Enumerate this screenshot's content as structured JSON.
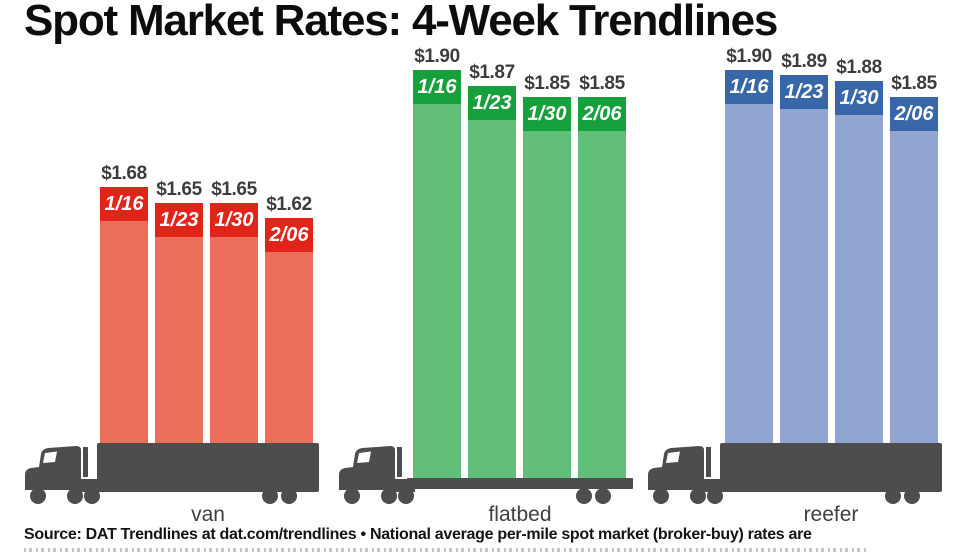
{
  "title": "Spot Market Rates: 4-Week Trendlines",
  "source_note": "Source: DAT Trendlines at dat.com/trendlines • National average per-mile spot market (broker-buy) rates are",
  "colors": {
    "background": "#ffffff",
    "title": "#0d0d0d",
    "value_label": "#3d3d3d",
    "group_label": "#3f3f3f",
    "source_text": "#141414",
    "truck": "#4d4d4d"
  },
  "chart_data": {
    "type": "bar",
    "title": "Spot Market Rates: 4-Week Trendlines",
    "xlabel": "",
    "ylabel": "",
    "unit": "$ per mile",
    "legend": "none",
    "gridlines": false,
    "categories": [
      "1/16",
      "1/23",
      "1/30",
      "2/06"
    ],
    "groups": [
      {
        "name": "van",
        "icon": "van-box-trailer-truck-icon",
        "truck_style": "box",
        "header_color": "#e2231a",
        "body_color": "#eb6e5b",
        "values": [
          1.68,
          1.65,
          1.65,
          1.62
        ],
        "value_labels": [
          "$1.68",
          "$1.65",
          "$1.65",
          "$1.62"
        ]
      },
      {
        "name": "flatbed",
        "icon": "flatbed-truck-icon",
        "truck_style": "flatbed",
        "header_color": "#16a03c",
        "body_color": "#62bf7a",
        "values": [
          1.9,
          1.87,
          1.85,
          1.85
        ],
        "value_labels": [
          "$1.90",
          "$1.87",
          "$1.85",
          "$1.85"
        ]
      },
      {
        "name": "reefer",
        "icon": "reefer-box-trailer-truck-icon",
        "truck_style": "box",
        "header_color": "#3767a9",
        "body_color": "#90a5d0",
        "values": [
          1.9,
          1.89,
          1.88,
          1.85
        ],
        "value_labels": [
          "$1.90",
          "$1.89",
          "$1.88",
          "$1.85"
        ]
      }
    ]
  }
}
